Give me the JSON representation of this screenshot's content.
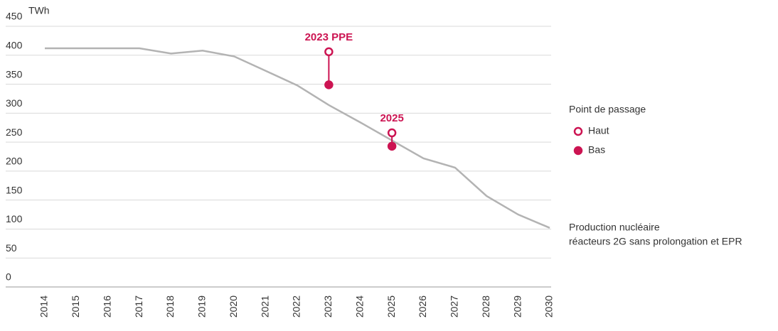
{
  "chart_data": {
    "type": "line",
    "y_label": "TWh",
    "x": [
      2014,
      2015,
      2016,
      2017,
      2018,
      2019,
      2020,
      2021,
      2022,
      2023,
      2024,
      2025,
      2026,
      2027,
      2028,
      2029,
      2030
    ],
    "ylim": [
      0,
      450
    ],
    "yticks": [
      0,
      50,
      100,
      150,
      200,
      250,
      300,
      350,
      400,
      450
    ],
    "grid": true,
    "series": [
      {
        "name": [
          "Production nucléaire",
          "réacteurs 2G sans prolongation et EPR"
        ],
        "color": "#b3b3b3",
        "values": [
          412,
          412,
          412,
          412,
          403,
          408,
          398,
          373,
          348,
          314,
          284,
          253,
          222,
          206,
          157,
          125,
          102
        ]
      }
    ],
    "points": {
      "title": "Point de passage",
      "x": [
        2023,
        2025
      ],
      "annotations": [
        "2023 PPE",
        "2025"
      ],
      "series": [
        {
          "name": "Haut",
          "style": "open",
          "color": "#cc1452",
          "values": [
            406,
            266
          ]
        },
        {
          "name": "Bas",
          "style": "filled",
          "color": "#cc1452",
          "values": [
            349,
            243
          ]
        }
      ]
    }
  }
}
